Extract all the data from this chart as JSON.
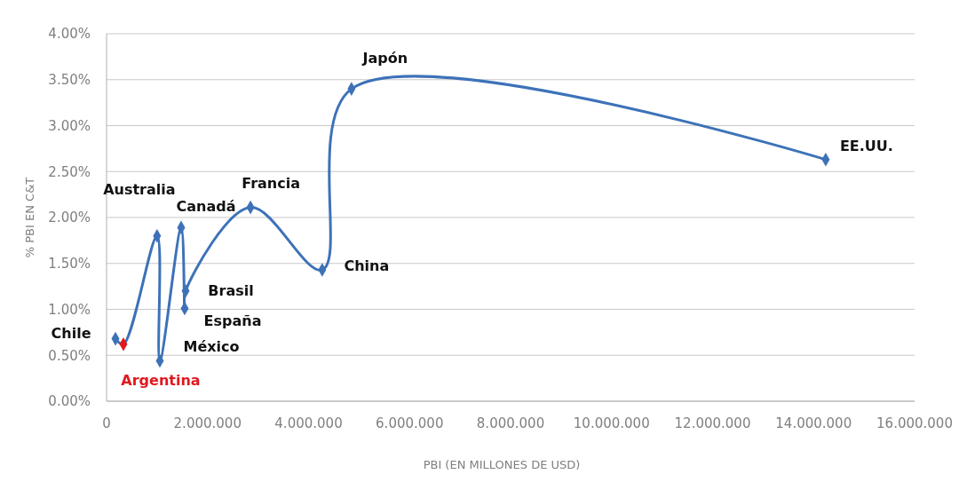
{
  "chart_data": {
    "type": "line",
    "xlabel": "PBI (EN MILLONES DE USD)",
    "ylabel": "% PBI EN C&T",
    "x": [
      176000,
      334000,
      1000000,
      1055000,
      1477000,
      1547000,
      1565000,
      2850000,
      4270000,
      4850000,
      14240000
    ],
    "series": [
      {
        "color": "#3d72b8",
        "colors": [
          "#3d72b8",
          "#e0191f",
          "#3d72b8",
          "#3d72b8",
          "#3d72b8",
          "#3d72b8",
          "#3d72b8",
          "#3d72b8",
          "#3d72b8",
          "#3d72b8",
          "#3d72b8"
        ],
        "values": [
          0.68,
          0.62,
          1.8,
          0.44,
          1.89,
          1.01,
          1.2,
          2.11,
          1.43,
          3.4,
          2.63
        ]
      }
    ],
    "xlim": [
      0,
      16000000
    ],
    "xticks": [
      0,
      {
        "value": 2000000,
        "label": "2.000.000"
      },
      {
        "value": 4000000,
        "label": "4.000.000"
      },
      {
        "value": 6000000,
        "label": "6.000.000"
      },
      {
        "value": 8000000,
        "label": "8.000.000"
      },
      {
        "value": 10000000,
        "label": "10.000.000"
      },
      {
        "value": 12000000,
        "label": "12.000.000"
      },
      {
        "value": 14000000,
        "label": "14.000.000"
      },
      {
        "value": 16000000,
        "label": "16.000.000"
      }
    ],
    "ylim": [
      0,
      4
    ],
    "yticks": [
      {
        "value": 0,
        "label": "0.00%"
      },
      {
        "value": 0.5,
        "label": "0.50%"
      },
      {
        "value": 1,
        "label": "1.00%"
      },
      {
        "value": 1.5,
        "label": "1.50%"
      },
      {
        "value": 2,
        "label": "2.00%"
      },
      {
        "value": 2.5,
        "label": "2.50%"
      },
      {
        "value": 3,
        "label": "3.00%"
      },
      {
        "value": 3.5,
        "label": "3.50%"
      },
      {
        "value": 4,
        "label": "4.00%"
      }
    ],
    "grid": "y",
    "marker": "diamond",
    "line_style": "solid",
    "annotations": [
      {
        "text": "Chile",
        "x": 176000,
        "y": 0.68
      },
      {
        "text": "Argentina",
        "x": 334000,
        "y": 0.62
      },
      {
        "text": "Australia",
        "x": 1000000,
        "y": 1.8
      },
      {
        "text": "México",
        "x": 1055000,
        "y": 0.44
      },
      {
        "text": "Canadá",
        "x": 1477000,
        "y": 1.89
      },
      {
        "text": "España",
        "x": 1547000,
        "y": 1.01
      },
      {
        "text": "Brasil",
        "x": 1565000,
        "y": 1.2
      },
      {
        "text": "Francia",
        "x": 2850000,
        "y": 2.11
      },
      {
        "text": "China",
        "x": 4270000,
        "y": 1.43
      },
      {
        "text": "Japón",
        "x": 4850000,
        "y": 3.4
      },
      {
        "text": "EE.UU.",
        "x": 14240000,
        "y": 2.63
      }
    ]
  }
}
